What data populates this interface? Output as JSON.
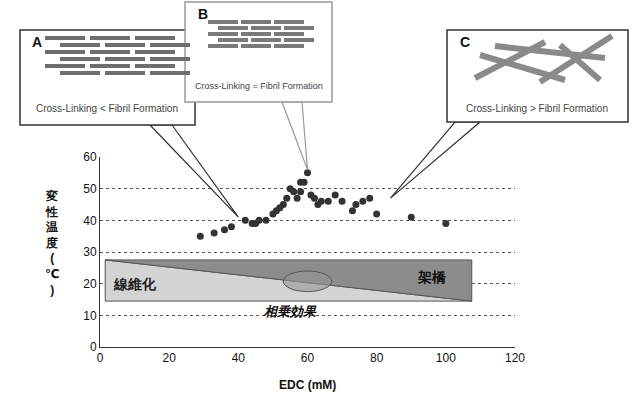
{
  "chart_data": {
    "type": "scatter",
    "x": [
      29,
      33,
      36,
      38,
      42,
      44,
      45,
      46,
      48,
      50,
      51,
      52,
      53,
      54,
      55,
      56,
      57,
      58,
      58,
      59,
      60,
      61,
      62,
      63,
      64,
      66,
      68,
      70,
      73,
      74,
      76,
      78,
      80,
      90,
      100
    ],
    "values": [
      35,
      36,
      37,
      38,
      40,
      39,
      39,
      40,
      40,
      42,
      43,
      44,
      45,
      47,
      50,
      49,
      47,
      49,
      52,
      52,
      55,
      48,
      47,
      45,
      46,
      46,
      48,
      46,
      43,
      45,
      46,
      47,
      42,
      41,
      39
    ],
    "color": "#333333",
    "marker": "circle",
    "xlabel": "EDC (mM)",
    "ylabel": "変性温度(℃)",
    "xlim": [
      0,
      120
    ],
    "xticks": [
      0,
      20,
      40,
      60,
      80,
      100,
      120
    ],
    "ylim": [
      0,
      60
    ],
    "yticks": [
      0,
      10,
      20,
      30,
      40,
      50,
      60
    ],
    "grid": true,
    "annotations": {
      "callouts": [
        {
          "label": "A",
          "text": "Cross-Linking < Fibril Formation"
        },
        {
          "label": "B",
          "text": "Cross-Linking = Fibril Formation"
        },
        {
          "label": "C",
          "text": "Cross-Linking > Fibril Formation"
        }
      ],
      "fibrosis": "線維化",
      "crosslinking": "架橋",
      "synergy": "相乗効果"
    }
  }
}
